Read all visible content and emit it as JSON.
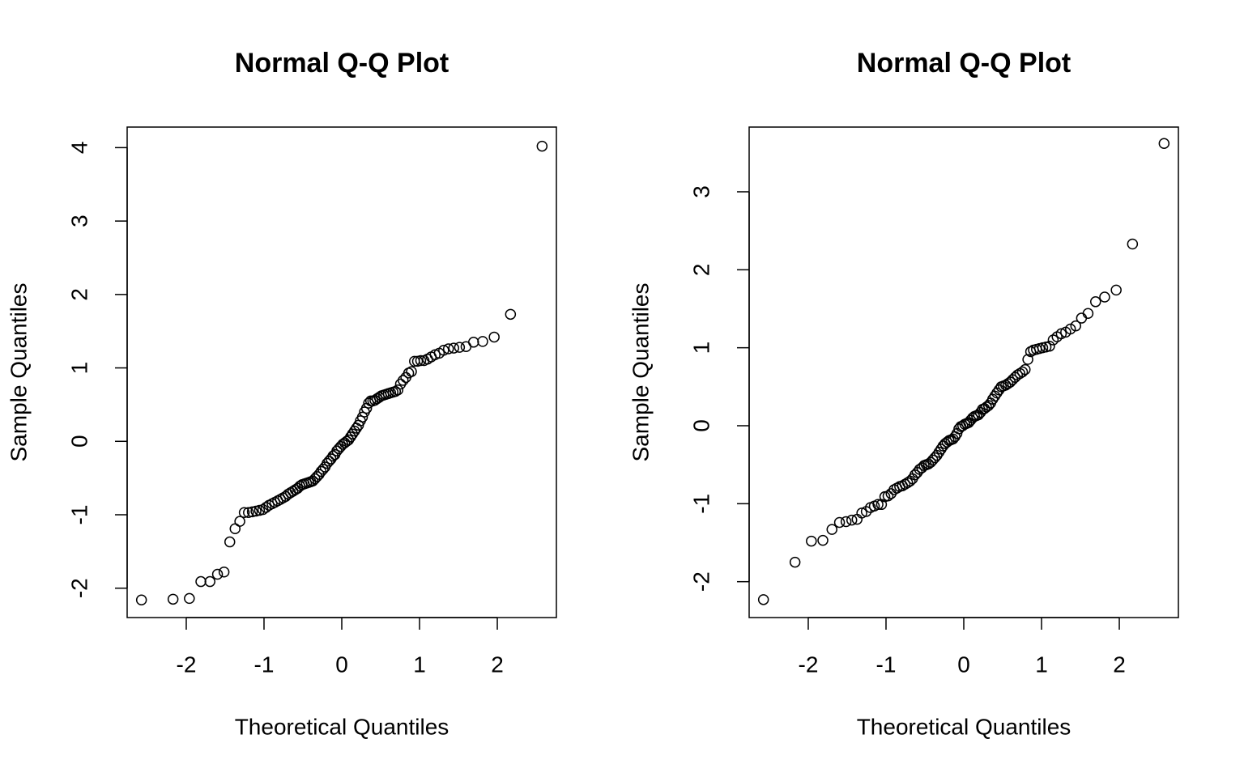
{
  "chart_data": [
    {
      "type": "scatter",
      "title": "Normal Q-Q Plot",
      "x_label": "Theoretical Quantiles",
      "y_label": "Sample Quantiles",
      "xlim": [
        -2.76,
        2.76
      ],
      "ylim": [
        -2.4,
        4.28
      ],
      "xticks": [
        -2,
        -1,
        0,
        1,
        2
      ],
      "yticks": [
        -2,
        -1,
        0,
        1,
        2,
        3,
        4
      ],
      "color": "#000000",
      "x": [
        -2.576,
        -2.17,
        -1.96,
        -1.812,
        -1.695,
        -1.598,
        -1.514,
        -1.44,
        -1.372,
        -1.311,
        -1.254,
        -1.2,
        -1.15,
        -1.103,
        -1.058,
        -1.015,
        -0.974,
        -0.935,
        -0.896,
        -0.86,
        -0.824,
        -0.789,
        -0.755,
        -0.722,
        -0.69,
        -0.659,
        -0.628,
        -0.598,
        -0.568,
        -0.539,
        -0.51,
        -0.482,
        -0.454,
        -0.426,
        -0.399,
        -0.372,
        -0.345,
        -0.319,
        -0.292,
        -0.266,
        -0.24,
        -0.215,
        -0.189,
        -0.164,
        -0.138,
        -0.113,
        -0.088,
        -0.063,
        -0.038,
        -0.013,
        0.013,
        0.038,
        0.063,
        0.088,
        0.113,
        0.138,
        0.164,
        0.189,
        0.215,
        0.24,
        0.266,
        0.292,
        0.319,
        0.345,
        0.372,
        0.399,
        0.426,
        0.454,
        0.482,
        0.51,
        0.539,
        0.568,
        0.598,
        0.628,
        0.659,
        0.69,
        0.722,
        0.755,
        0.789,
        0.824,
        0.86,
        0.896,
        0.935,
        0.974,
        1.015,
        1.058,
        1.103,
        1.15,
        1.2,
        1.254,
        1.311,
        1.372,
        1.44,
        1.514,
        1.598,
        1.695,
        1.812,
        1.96,
        2.17,
        2.576
      ],
      "values": [
        -2.16,
        -2.15,
        -2.14,
        -1.91,
        -1.91,
        -1.81,
        -1.78,
        -1.37,
        -1.19,
        -1.09,
        -0.97,
        -0.97,
        -0.96,
        -0.95,
        -0.94,
        -0.93,
        -0.9,
        -0.87,
        -0.85,
        -0.83,
        -0.81,
        -0.79,
        -0.77,
        -0.75,
        -0.72,
        -0.7,
        -0.68,
        -0.66,
        -0.64,
        -0.61,
        -0.59,
        -0.58,
        -0.57,
        -0.56,
        -0.55,
        -0.54,
        -0.51,
        -0.48,
        -0.45,
        -0.41,
        -0.38,
        -0.35,
        -0.3,
        -0.27,
        -0.24,
        -0.2,
        -0.18,
        -0.13,
        -0.1,
        -0.07,
        -0.04,
        -0.02,
        0,
        0.02,
        0.06,
        0.1,
        0.14,
        0.18,
        0.22,
        0.28,
        0.33,
        0.4,
        0.45,
        0.52,
        0.55,
        0.55,
        0.56,
        0.58,
        0.6,
        0.62,
        0.63,
        0.64,
        0.65,
        0.66,
        0.67,
        0.68,
        0.7,
        0.78,
        0.83,
        0.87,
        0.93,
        0.95,
        1.09,
        1.09,
        1.1,
        1.1,
        1.12,
        1.15,
        1.18,
        1.2,
        1.24,
        1.26,
        1.27,
        1.28,
        1.29,
        1.35,
        1.36,
        1.42,
        1.73,
        4.02
      ]
    },
    {
      "type": "scatter",
      "title": "Normal Q-Q Plot",
      "x_label": "Theoretical Quantiles",
      "y_label": "Sample Quantiles",
      "xlim": [
        -2.76,
        2.76
      ],
      "ylim": [
        -2.46,
        3.83
      ],
      "xticks": [
        -2,
        -1,
        0,
        1,
        2
      ],
      "yticks": [
        -2,
        -1,
        0,
        1,
        2,
        3
      ],
      "color": "#000000",
      "x": [
        -2.576,
        -2.17,
        -1.96,
        -1.812,
        -1.695,
        -1.598,
        -1.514,
        -1.44,
        -1.372,
        -1.311,
        -1.254,
        -1.2,
        -1.15,
        -1.103,
        -1.058,
        -1.015,
        -0.974,
        -0.935,
        -0.896,
        -0.86,
        -0.824,
        -0.789,
        -0.755,
        -0.722,
        -0.69,
        -0.659,
        -0.628,
        -0.598,
        -0.568,
        -0.539,
        -0.51,
        -0.482,
        -0.454,
        -0.426,
        -0.399,
        -0.372,
        -0.345,
        -0.319,
        -0.292,
        -0.266,
        -0.24,
        -0.215,
        -0.189,
        -0.164,
        -0.138,
        -0.113,
        -0.088,
        -0.063,
        -0.038,
        -0.013,
        0.013,
        0.038,
        0.063,
        0.088,
        0.113,
        0.138,
        0.164,
        0.189,
        0.215,
        0.24,
        0.266,
        0.292,
        0.319,
        0.345,
        0.372,
        0.399,
        0.426,
        0.454,
        0.482,
        0.51,
        0.539,
        0.568,
        0.598,
        0.628,
        0.659,
        0.69,
        0.722,
        0.755,
        0.789,
        0.824,
        0.86,
        0.896,
        0.935,
        0.974,
        1.015,
        1.058,
        1.103,
        1.15,
        1.2,
        1.254,
        1.311,
        1.372,
        1.44,
        1.514,
        1.598,
        1.695,
        1.812,
        1.96,
        2.17,
        2.576
      ],
      "values": [
        -2.23,
        -1.75,
        -1.48,
        -1.47,
        -1.33,
        -1.24,
        -1.23,
        -1.21,
        -1.2,
        -1.12,
        -1.1,
        -1.05,
        -1.03,
        -1.01,
        -1.01,
        -0.91,
        -0.9,
        -0.87,
        -0.82,
        -0.8,
        -0.78,
        -0.77,
        -0.75,
        -0.73,
        -0.71,
        -0.68,
        -0.63,
        -0.6,
        -0.56,
        -0.54,
        -0.51,
        -0.5,
        -0.49,
        -0.47,
        -0.44,
        -0.41,
        -0.38,
        -0.34,
        -0.3,
        -0.26,
        -0.23,
        -0.21,
        -0.19,
        -0.18,
        -0.17,
        -0.14,
        -0.1,
        -0.04,
        -0.01,
        0,
        0.02,
        0.03,
        0.04,
        0.07,
        0.1,
        0.12,
        0.13,
        0.14,
        0.17,
        0.21,
        0.22,
        0.24,
        0.26,
        0.29,
        0.34,
        0.38,
        0.42,
        0.46,
        0.5,
        0.51,
        0.52,
        0.54,
        0.56,
        0.59,
        0.62,
        0.65,
        0.67,
        0.69,
        0.72,
        0.85,
        0.95,
        0.97,
        0.98,
        0.99,
        1,
        1.01,
        1.02,
        1.1,
        1.14,
        1.18,
        1.2,
        1.24,
        1.28,
        1.38,
        1.44,
        1.59,
        1.65,
        1.74,
        2.33,
        3.62
      ]
    }
  ]
}
